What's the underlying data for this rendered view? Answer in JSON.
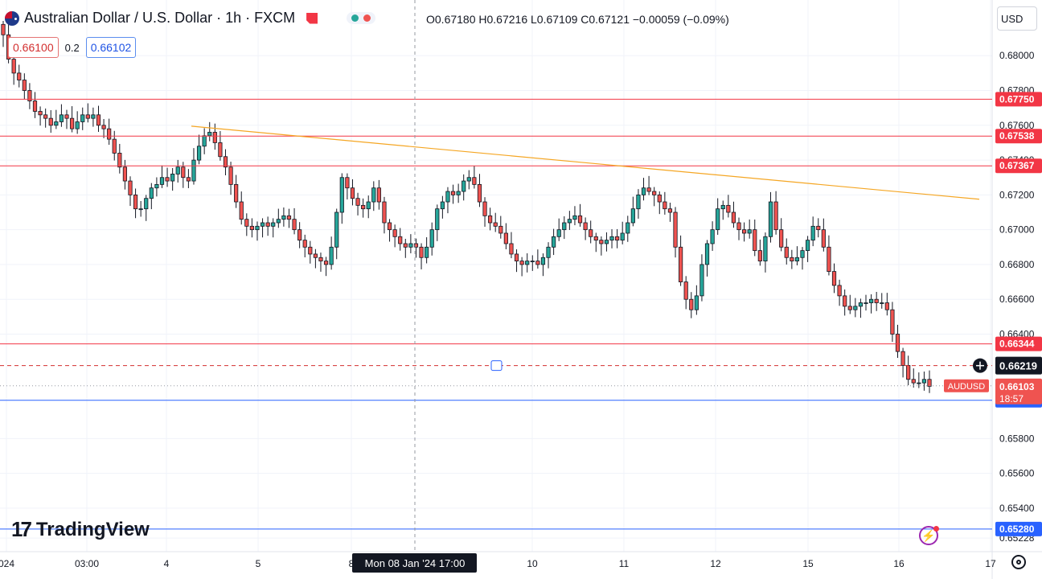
{
  "header": {
    "title": "Australian Dollar / U.S. Dollar · 1h · FXCM",
    "ohlc": "O0.67180  H0.67216  L0.67109  C0.67121  −0.00059  (−0.09%)",
    "sell_price": "0.66100",
    "spread": "0.2",
    "buy_price": "0.66102",
    "currency": "USD"
  },
  "logo_text": "TradingView",
  "icons": [
    "flag-icon",
    "alert-icon",
    "indicator-dots-icon",
    "crosshair-plus-icon",
    "lightning-icon",
    "gear-icon",
    "tv-logo-icon"
  ],
  "colors": {
    "up": "#26a69a",
    "down": "#ef5350",
    "resistance": "#f23645",
    "trendline": "#f5a623",
    "support": "#2962ff",
    "candle": "#131722"
  },
  "chart_data": {
    "type": "candlestick",
    "symbol_label": "AUDUSD",
    "countdown": "18:57",
    "ylim": [
      0.6515,
      0.6832
    ],
    "y_ticks": [
      "0.68000",
      "0.67800",
      "0.67600",
      "0.67400",
      "0.67200",
      "0.67000",
      "0.66800",
      "0.66600",
      "0.66400",
      "0.65800",
      "0.65600",
      "0.65400",
      "0.65228"
    ],
    "x_ticks": [
      "024",
      "03:00",
      "4",
      "5",
      "8",
      "10",
      "11",
      "12",
      "15",
      "16",
      "17"
    ],
    "crosshair_time_label": "Mon 08 Jan '24  17:00",
    "crosshair_price": "0.66219",
    "last_price": "0.66103",
    "horizontal_lines": [
      {
        "price": 0.6775,
        "label": "0.67750",
        "color": "#f23645"
      },
      {
        "price": 0.67538,
        "label": "0.67538",
        "color": "#f23645"
      },
      {
        "price": 0.67367,
        "label": "0.67367",
        "color": "#f23645"
      },
      {
        "price": 0.66344,
        "label": "0.66344",
        "color": "#f23645"
      },
      {
        "price": 0.6602,
        "label": "0.66020",
        "color": "#2962ff"
      },
      {
        "price": 0.6528,
        "label": "0.65280",
        "color": "#2962ff"
      }
    ],
    "trendline": {
      "from": [
        0.0,
        0.67595
      ],
      "to": [
        1.0,
        0.67175
      ]
    },
    "closes": [
      0.6812,
      0.6798,
      0.679,
      0.6786,
      0.678,
      0.6774,
      0.6768,
      0.6766,
      0.6764,
      0.676,
      0.6762,
      0.6766,
      0.6764,
      0.6758,
      0.6762,
      0.6766,
      0.6764,
      0.6766,
      0.676,
      0.6758,
      0.6752,
      0.6744,
      0.6736,
      0.6728,
      0.672,
      0.6712,
      0.6712,
      0.6718,
      0.6724,
      0.6726,
      0.673,
      0.6728,
      0.6732,
      0.6736,
      0.673,
      0.6728,
      0.674,
      0.6748,
      0.6754,
      0.6756,
      0.675,
      0.6742,
      0.6736,
      0.6726,
      0.6716,
      0.6706,
      0.6702,
      0.67,
      0.6702,
      0.6704,
      0.6702,
      0.6704,
      0.6706,
      0.6708,
      0.6706,
      0.67,
      0.6694,
      0.669,
      0.6686,
      0.6684,
      0.6682,
      0.668,
      0.669,
      0.671,
      0.673,
      0.6724,
      0.6718,
      0.6714,
      0.6712,
      0.6716,
      0.6724,
      0.6716,
      0.6704,
      0.67,
      0.6696,
      0.6692,
      0.669,
      0.6692,
      0.669,
      0.6684,
      0.669,
      0.67,
      0.6712,
      0.6716,
      0.6722,
      0.672,
      0.6722,
      0.6728,
      0.673,
      0.6726,
      0.6716,
      0.6708,
      0.6704,
      0.6702,
      0.6698,
      0.6692,
      0.6686,
      0.6682,
      0.668,
      0.6682,
      0.6682,
      0.668,
      0.6684,
      0.669,
      0.6696,
      0.67,
      0.6704,
      0.6706,
      0.6708,
      0.6704,
      0.67,
      0.6696,
      0.6694,
      0.6692,
      0.6694,
      0.6696,
      0.6694,
      0.6698,
      0.6704,
      0.6712,
      0.672,
      0.6724,
      0.6722,
      0.672,
      0.6716,
      0.6712,
      0.671,
      0.669,
      0.667,
      0.666,
      0.6654,
      0.6662,
      0.668,
      0.6692,
      0.67,
      0.6712,
      0.6714,
      0.671,
      0.6704,
      0.67,
      0.6698,
      0.67,
      0.6688,
      0.6682,
      0.6696,
      0.6716,
      0.67,
      0.669,
      0.6684,
      0.6682,
      0.6684,
      0.6688,
      0.6694,
      0.6702,
      0.67,
      0.669,
      0.6676,
      0.6668,
      0.6662,
      0.6656,
      0.6654,
      0.6656,
      0.6658,
      0.6658,
      0.666,
      0.6658,
      0.6658,
      0.6654,
      0.664,
      0.663,
      0.6622,
      0.6614,
      0.6612,
      0.6612,
      0.6614,
      0.661
    ]
  }
}
